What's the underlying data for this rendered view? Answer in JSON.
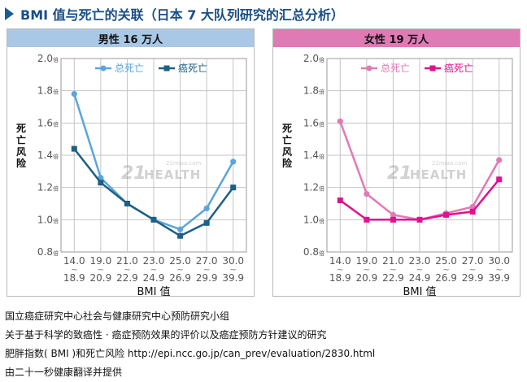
{
  "title": "BMI 值与死亡的关联（日本 7 大队列研究的汇总分析）",
  "watermark": {
    "brand": "21",
    "text": "HEALTH",
    "site": "21miao.com"
  },
  "colors": {
    "title": "#1a4f86",
    "male_header": "#a9c8e6",
    "female_header": "#df7ab4",
    "male_total": "#5aa5dc",
    "male_cancer": "#1d5f85",
    "female_total": "#e07ab7",
    "female_cancer": "#e0118e"
  },
  "chart_data": [
    {
      "type": "line",
      "panel_title": "男性 16 万人",
      "ylabel": "死亡风险",
      "xlabel": "BMI 值",
      "ylim": [
        0.8,
        2.0
      ],
      "yticks": [
        "0.8倍",
        "1.0倍",
        "1.2倍",
        "1.4倍",
        "1.6倍",
        "1.8倍",
        "2.0倍"
      ],
      "categories": [
        [
          "14.0",
          "~",
          "18.9"
        ],
        [
          "19.0",
          "~",
          "20.9"
        ],
        [
          "21.0",
          "~",
          "22.9"
        ],
        [
          "23.0",
          "~",
          "24.9"
        ],
        [
          "25.0",
          "~",
          "26.9"
        ],
        [
          "27.0",
          "~",
          "29.9"
        ],
        [
          "30.0",
          "~",
          "39.9"
        ]
      ],
      "grid": true,
      "legend_position": "top-center",
      "series": [
        {
          "name": "总死亡",
          "color": "#5aa5dc",
          "values": [
            1.78,
            1.26,
            1.1,
            1.0,
            0.94,
            1.07,
            1.36
          ]
        },
        {
          "name": "癌死亡",
          "color": "#1d5f85",
          "values": [
            1.44,
            1.23,
            1.1,
            1.0,
            0.9,
            0.98,
            1.2
          ]
        }
      ]
    },
    {
      "type": "line",
      "panel_title": "女性 19 万人",
      "ylabel": "死亡风险",
      "xlabel": "BMI 值",
      "ylim": [
        0.8,
        2.0
      ],
      "yticks": [
        "0.8倍",
        "1.0倍",
        "1.2倍",
        "1.4倍",
        "1.6倍",
        "1.8倍",
        "2.0倍"
      ],
      "categories": [
        [
          "14.0",
          "~",
          "18.9"
        ],
        [
          "19.0",
          "~",
          "20.9"
        ],
        [
          "21.0",
          "~",
          "22.9"
        ],
        [
          "23.0",
          "~",
          "24.9"
        ],
        [
          "25.0",
          "~",
          "26.9"
        ],
        [
          "27.0",
          "~",
          "29.9"
        ],
        [
          "30.0",
          "~",
          "39.9"
        ]
      ],
      "grid": true,
      "legend_position": "top-center",
      "series": [
        {
          "name": "总死亡",
          "color": "#e07ab7",
          "values": [
            1.61,
            1.16,
            1.03,
            1.0,
            1.04,
            1.08,
            1.37
          ]
        },
        {
          "name": "癌死亡",
          "color": "#e0118e",
          "values": [
            1.12,
            1.0,
            1.0,
            1.0,
            1.03,
            1.05,
            1.25
          ]
        }
      ]
    }
  ],
  "notes": [
    "国立癌症研究中心社会与健康研究中心预防研究小组",
    "关于基于科学的致癌性 · 癌症预防效果的评价以及癌症预防方针建议的研究",
    "肥胖指数( BMI )和死亡风险  http://epi.ncc.go.jp/can_prev/evaluation/2830.html",
    "由二十一秒健康翻译并提供"
  ]
}
